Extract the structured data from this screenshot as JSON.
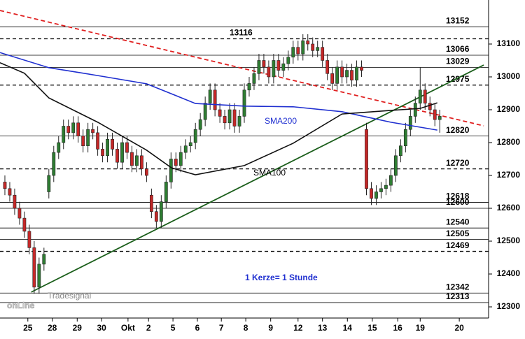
{
  "chart_data": {
    "type": "candlestick",
    "xlim": [
      -1,
      99
    ],
    "ylim": [
      12266,
      13234
    ],
    "yticks": [
      12300,
      12400,
      12500,
      12600,
      12700,
      12800,
      12900,
      13000,
      13100
    ],
    "xticks": [
      {
        "value": 4.7,
        "label": "25"
      },
      {
        "value": 9.7,
        "label": "28"
      },
      {
        "value": 14.8,
        "label": "29"
      },
      {
        "value": 19.8,
        "label": "30"
      },
      {
        "value": 25.2,
        "label": "Okt"
      },
      {
        "value": 29.4,
        "label": "2"
      },
      {
        "value": 34.4,
        "label": "5"
      },
      {
        "value": 39.4,
        "label": "6"
      },
      {
        "value": 44.3,
        "label": "7"
      },
      {
        "value": 49.3,
        "label": "8"
      },
      {
        "value": 54.4,
        "label": "9"
      },
      {
        "value": 60,
        "label": "12"
      },
      {
        "value": 65,
        "label": "13"
      },
      {
        "value": 70.1,
        "label": "14"
      },
      {
        "value": 75.2,
        "label": "15"
      },
      {
        "value": 80.4,
        "label": "16"
      },
      {
        "value": 85,
        "label": "19"
      },
      {
        "value": 93,
        "label": "20"
      }
    ],
    "up_color": "#2e7d32",
    "down_color": "#c62828",
    "candles": [
      [
        12680,
        12700,
        12640,
        12660
      ],
      [
        12660,
        12680,
        12620,
        12640
      ],
      [
        12640,
        12660,
        12580,
        12600
      ],
      [
        12600,
        12620,
        12550,
        12570
      ],
      [
        12570,
        12590,
        12510,
        12530
      ],
      [
        12530,
        12550,
        12460,
        12480
      ],
      [
        12480,
        12500,
        12340,
        12360
      ],
      [
        12360,
        12450,
        12340,
        12430
      ],
      [
        12430,
        12480,
        12410,
        12460
      ],
      [
        12650,
        12720,
        12630,
        12700
      ],
      [
        12700,
        12790,
        12680,
        12770
      ],
      [
        12770,
        12820,
        12750,
        12800
      ],
      [
        12800,
        12870,
        12780,
        12850
      ],
      [
        12850,
        12870,
        12810,
        12830
      ],
      [
        12830,
        12880,
        12810,
        12860
      ],
      [
        12860,
        12880,
        12800,
        12820
      ],
      [
        12820,
        12840,
        12770,
        12790
      ],
      [
        12790,
        12860,
        12770,
        12840
      ],
      [
        12840,
        12860,
        12810,
        12830
      ],
      [
        12830,
        12850,
        12760,
        12780
      ],
      [
        12780,
        12800,
        12740,
        12760
      ],
      [
        12760,
        12830,
        12740,
        12810
      ],
      [
        12810,
        12830,
        12760,
        12780
      ],
      [
        12780,
        12800,
        12720,
        12740
      ],
      [
        12740,
        12820,
        12720,
        12800
      ],
      [
        12800,
        12820,
        12750,
        12770
      ],
      [
        12770,
        12790,
        12710,
        12730
      ],
      [
        12730,
        12780,
        12710,
        12760
      ],
      [
        12760,
        12780,
        12700,
        12720
      ],
      [
        12720,
        12740,
        12680,
        12700
      ],
      [
        12640,
        12660,
        12570,
        12590
      ],
      [
        12590,
        12610,
        12540,
        12560
      ],
      [
        12560,
        12640,
        12540,
        12620
      ],
      [
        12620,
        12700,
        12600,
        12680
      ],
      [
        12680,
        12770,
        12660,
        12750
      ],
      [
        12750,
        12770,
        12710,
        12730
      ],
      [
        12730,
        12790,
        12710,
        12770
      ],
      [
        12770,
        12810,
        12750,
        12790
      ],
      [
        12790,
        12820,
        12770,
        12800
      ],
      [
        12800,
        12860,
        12780,
        12840
      ],
      [
        12840,
        12890,
        12820,
        12870
      ],
      [
        12870,
        12940,
        12850,
        12920
      ],
      [
        12920,
        12980,
        12900,
        12960
      ],
      [
        12960,
        12980,
        12880,
        12900
      ],
      [
        12900,
        12920,
        12860,
        12880
      ],
      [
        12880,
        12900,
        12840,
        12860
      ],
      [
        12860,
        12920,
        12840,
        12900
      ],
      [
        12900,
        12920,
        12830,
        12850
      ],
      [
        12850,
        12900,
        12830,
        12880
      ],
      [
        12880,
        12980,
        12860,
        12960
      ],
      [
        12960,
        13000,
        12940,
        12980
      ],
      [
        12980,
        13030,
        12960,
        13010
      ],
      [
        13010,
        13070,
        12990,
        13050
      ],
      [
        13050,
        13070,
        13010,
        13030
      ],
      [
        13030,
        13050,
        12980,
        13000
      ],
      [
        13000,
        13070,
        12980,
        13050
      ],
      [
        13050,
        13070,
        13000,
        13020
      ],
      [
        13020,
        13060,
        13000,
        13040
      ],
      [
        13040,
        13080,
        13020,
        13060
      ],
      [
        13060,
        13110,
        13040,
        13090
      ],
      [
        13090,
        13110,
        13050,
        13070
      ],
      [
        13070,
        13130,
        13050,
        13110
      ],
      [
        13110,
        13130,
        13080,
        13100
      ],
      [
        13100,
        13120,
        13060,
        13080
      ],
      [
        13080,
        13110,
        13060,
        13090
      ],
      [
        13090,
        13110,
        13030,
        13050
      ],
      [
        13050,
        13070,
        12990,
        13010
      ],
      [
        13010,
        13030,
        12960,
        12980
      ],
      [
        12980,
        13050,
        12960,
        13030
      ],
      [
        13030,
        13050,
        12980,
        13000
      ],
      [
        13000,
        13040,
        12980,
        13020
      ],
      [
        13020,
        13040,
        12970,
        12990
      ],
      [
        12990,
        13050,
        12970,
        13030
      ],
      [
        13030,
        13050,
        13000,
        13020
      ],
      [
        12840,
        12860,
        12640,
        12660
      ],
      [
        12660,
        12680,
        12610,
        12630
      ],
      [
        12630,
        12670,
        12610,
        12650
      ],
      [
        12650,
        12680,
        12630,
        12660
      ],
      [
        12660,
        12690,
        12640,
        12670
      ],
      [
        12670,
        12720,
        12650,
        12700
      ],
      [
        12700,
        12780,
        12680,
        12760
      ],
      [
        12760,
        12810,
        12740,
        12790
      ],
      [
        12790,
        12860,
        12770,
        12840
      ],
      [
        12840,
        12900,
        12820,
        12880
      ],
      [
        12880,
        12940,
        12860,
        12920
      ],
      [
        12920,
        13030,
        12900,
        12960
      ],
      [
        12960,
        12980,
        12900,
        12920
      ],
      [
        12920,
        12940,
        12880,
        12900
      ],
      [
        12900,
        12920,
        12850,
        12870
      ],
      [
        12870,
        12900,
        12830,
        12880
      ]
    ],
    "series": [
      {
        "name": "SMA200",
        "color": "#1f2fd0",
        "x": [
          -1,
          9,
          19,
          29,
          39,
          49,
          59,
          69,
          79,
          88.5
        ],
        "values": [
          13074,
          13028,
          13004,
          12979,
          12919,
          12911,
          12909,
          12894,
          12862,
          12838
        ]
      },
      {
        "name": "SMA100",
        "color": "#111111",
        "x": [
          -1,
          4,
          9,
          19,
          29,
          34.1,
          39,
          49,
          59,
          69,
          79,
          85,
          88.5
        ],
        "values": [
          13043,
          13011,
          12936,
          12862,
          12777,
          12723,
          12702,
          12730,
          12798,
          12887,
          12898,
          12904,
          12921
        ]
      }
    ],
    "trendlines": [
      {
        "color": "#e02020",
        "style": "dashed",
        "x": [
          -1,
          98
        ],
        "values": [
          13202,
          12851
        ]
      },
      {
        "color": "#1a5e1a",
        "style": "solid",
        "x": [
          5.4,
          98
        ],
        "values": [
          12345,
          13036
        ]
      }
    ],
    "levels": [
      {
        "value": 13152,
        "style": "solid"
      },
      {
        "value": 13116,
        "style": "dashed",
        "label_position": "center"
      },
      {
        "value": 13066,
        "style": "solid"
      },
      {
        "value": 13029,
        "style": "solid"
      },
      {
        "value": 12975,
        "style": "dashed"
      },
      {
        "value": 12820,
        "style": "solid"
      },
      {
        "value": 12720,
        "style": "dashed"
      },
      {
        "value": 12618,
        "style": "solid"
      },
      {
        "value": 12600,
        "style": "solid"
      },
      {
        "value": 12540,
        "style": "solid"
      },
      {
        "value": 12505,
        "style": "solid"
      },
      {
        "value": 12469,
        "style": "dashed"
      },
      {
        "value": 12342,
        "style": "solid"
      },
      {
        "value": 12313,
        "style": "solid"
      }
    ],
    "annotation": "1 Kerze= 1 Stunde",
    "logo": {
      "top": "Tradesignal",
      "main": "onLine"
    }
  }
}
